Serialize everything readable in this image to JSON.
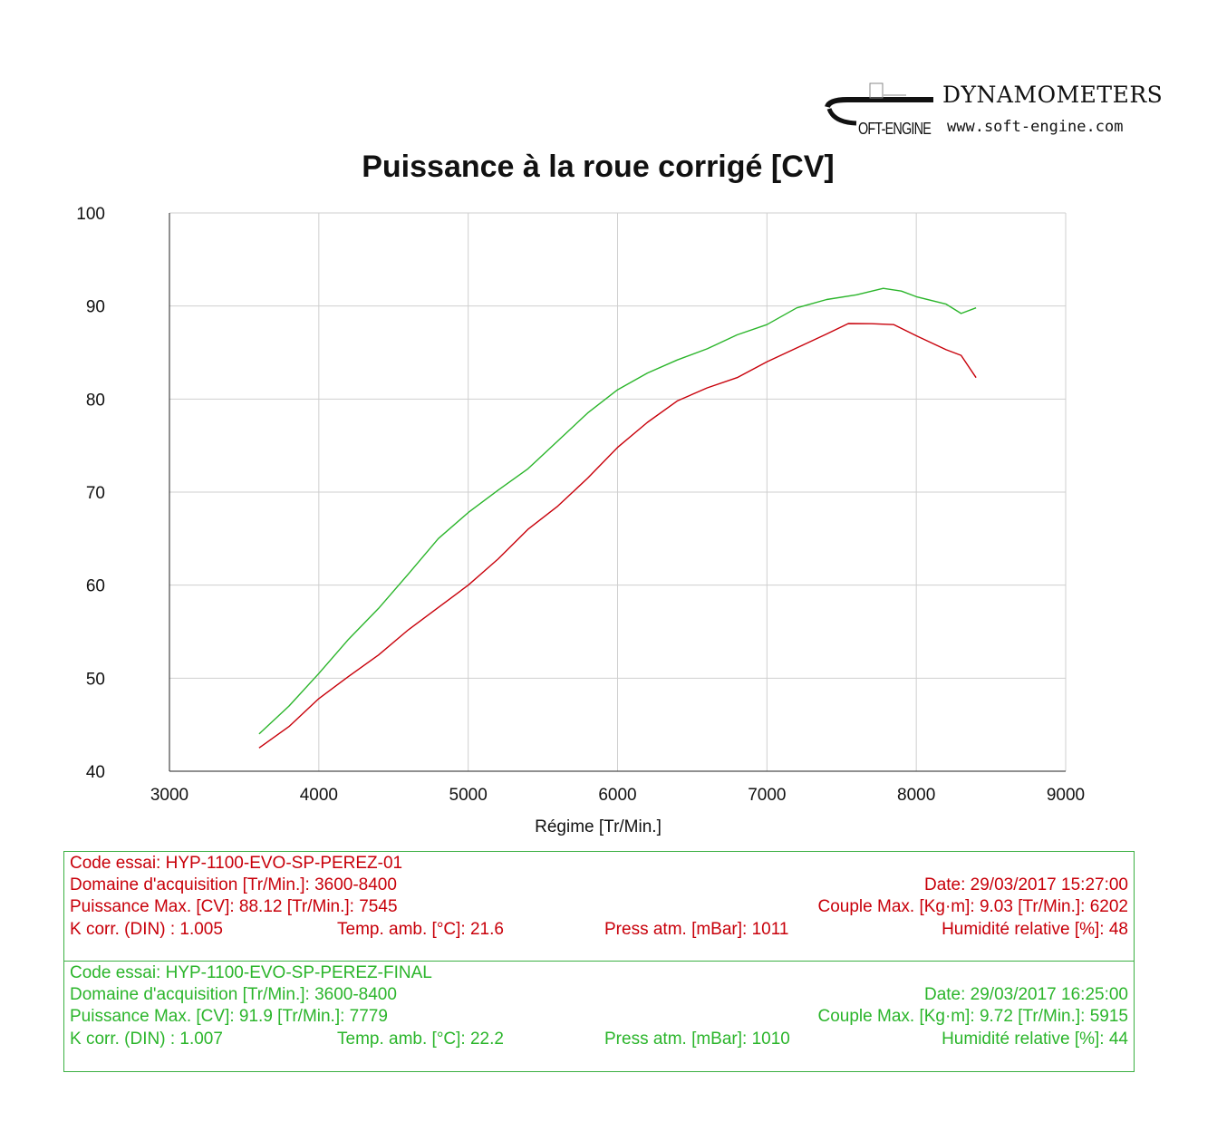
{
  "logo": {
    "brand": "DYNAMOMETERS",
    "mark": "OFT-ENGINE",
    "url": "www.soft-engine.com"
  },
  "chart_data": {
    "type": "line",
    "title": "Puissance à la roue corrigé [CV]",
    "xlabel": "Régime [Tr/Min.]",
    "ylabel": "",
    "xlim": [
      3000,
      9000
    ],
    "ylim": [
      40,
      100
    ],
    "xticks": [
      3000,
      4000,
      5000,
      6000,
      7000,
      8000,
      9000
    ],
    "yticks": [
      40,
      50,
      60,
      70,
      80,
      90,
      100
    ],
    "grid": true,
    "series": [
      {
        "color": "#c8000a",
        "x": [
          3600,
          3800,
          4000,
          4200,
          4400,
          4600,
          4800,
          5000,
          5200,
          5400,
          5600,
          5800,
          6000,
          6200,
          6400,
          6600,
          6800,
          7000,
          7200,
          7400,
          7545,
          7700,
          7850,
          8000,
          8200,
          8300,
          8400
        ],
        "y": [
          42.5,
          44.8,
          47.8,
          50.2,
          52.5,
          55.2,
          57.6,
          60.0,
          62.8,
          66.0,
          68.5,
          71.5,
          74.8,
          77.5,
          79.8,
          81.2,
          82.3,
          84.0,
          85.5,
          87.0,
          88.12,
          88.1,
          88.0,
          86.8,
          85.3,
          84.7,
          82.3
        ]
      },
      {
        "color": "#2bb52b",
        "x": [
          3600,
          3800,
          4000,
          4200,
          4400,
          4600,
          4800,
          5000,
          5200,
          5400,
          5600,
          5800,
          6000,
          6200,
          6400,
          6600,
          6800,
          7000,
          7200,
          7400,
          7600,
          7779,
          7900,
          8000,
          8200,
          8300,
          8400
        ],
        "y": [
          44.0,
          47.0,
          50.5,
          54.2,
          57.5,
          61.2,
          65.0,
          67.8,
          70.2,
          72.5,
          75.5,
          78.5,
          81.0,
          82.8,
          84.2,
          85.4,
          86.9,
          88.0,
          89.8,
          90.7,
          91.2,
          91.9,
          91.6,
          91.0,
          90.2,
          89.2,
          89.8
        ]
      }
    ]
  },
  "run1": {
    "code": "Code essai: HYP-1100-EVO-SP-PEREZ-01",
    "domaine": "Domaine d'acquisition [Tr/Min.]: 3600-8400",
    "date": "Date: 29/03/2017   15:27:00",
    "puissance": "Puissance Max. [CV]: 88.12   [Tr/Min.]: 7545",
    "couple": "Couple Max. [Kg·m]: 9.03   [Tr/Min.]: 6202",
    "kcorr": "K corr. (DIN) : 1.005",
    "temp": "Temp. amb. [°C]: 21.6",
    "press": "Press atm. [mBar]: 1011",
    "hum": "Humidité relative [%]: 48"
  },
  "run2": {
    "code": "Code essai: HYP-1100-EVO-SP-PEREZ-FINAL",
    "domaine": "Domaine d'acquisition [Tr/Min.]: 3600-8400",
    "date": "Date: 29/03/2017   16:25:00",
    "puissance": "Puissance Max. [CV]: 91.9   [Tr/Min.]: 7779",
    "couple": "Couple Max. [Kg·m]: 9.72   [Tr/Min.]: 5915",
    "kcorr": "K corr. (DIN) : 1.007",
    "temp": "Temp. amb. [°C]: 22.2",
    "press": "Press atm. [mBar]: 1010",
    "hum": "Humidité relative [%]: 44"
  }
}
